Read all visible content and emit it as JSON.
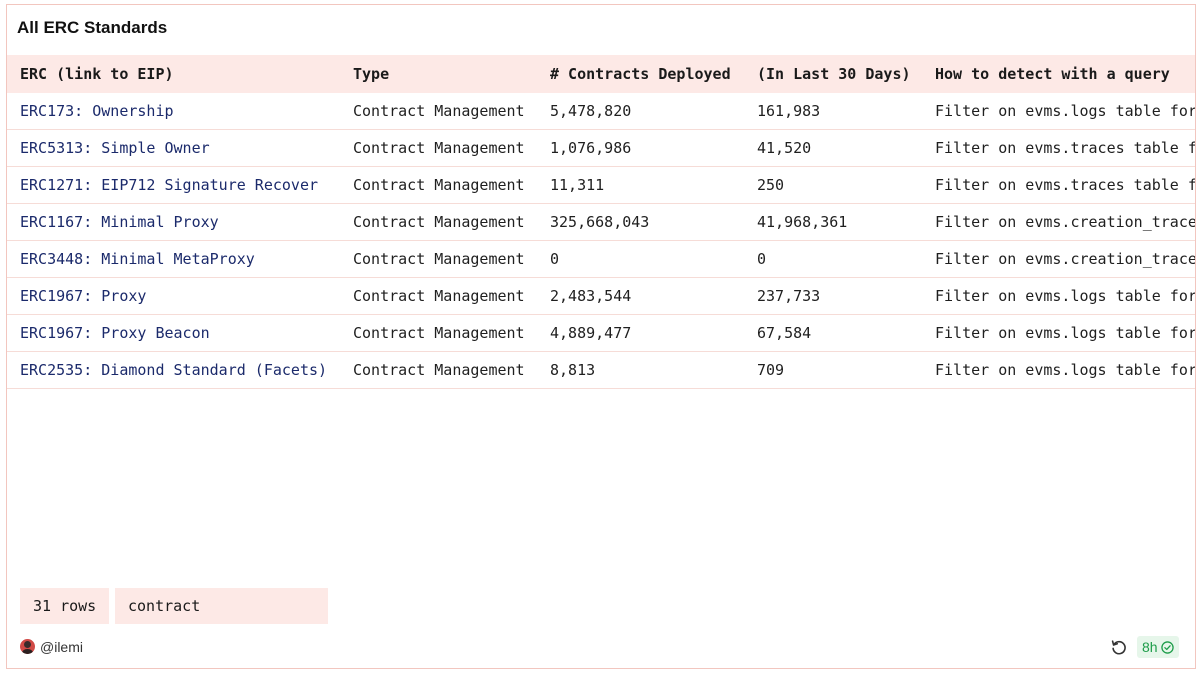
{
  "widget": {
    "title": "All ERC Standards"
  },
  "table": {
    "columns": [
      "ERC (link to EIP)",
      "Type",
      "# Contracts Deployed",
      "(In Last 30 Days)",
      "How to detect with a query"
    ],
    "rows": [
      {
        "erc": "ERC173: Ownership",
        "type": "Contract Management",
        "deployed": "5,478,820",
        "last30": "161,983",
        "detect": "Filter on evms.logs table for"
      },
      {
        "erc": "ERC5313: Simple Owner",
        "type": "Contract Management",
        "deployed": "1,076,986",
        "last30": "41,520",
        "detect": "Filter on evms.traces table fo"
      },
      {
        "erc": "ERC1271: EIP712 Signature Recover",
        "type": "Contract Management",
        "deployed": "11,311",
        "last30": "250",
        "detect": "Filter on evms.traces table fo"
      },
      {
        "erc": "ERC1167: Minimal Proxy",
        "type": "Contract Management",
        "deployed": "325,668,043",
        "last30": "41,968,361",
        "detect": "Filter on evms.creation_traces"
      },
      {
        "erc": "ERC3448: Minimal MetaProxy",
        "type": "Contract Management",
        "deployed": "0",
        "last30": "0",
        "detect": "Filter on evms.creation_traces"
      },
      {
        "erc": "ERC1967: Proxy",
        "type": "Contract Management",
        "deployed": "2,483,544",
        "last30": "237,733",
        "detect": "Filter on evms.logs table for"
      },
      {
        "erc": "ERC1967: Proxy Beacon",
        "type": "Contract Management",
        "deployed": "4,889,477",
        "last30": "67,584",
        "detect": "Filter on evms.logs table for"
      },
      {
        "erc": "ERC2535: Diamond Standard (Facets)",
        "type": "Contract Management",
        "deployed": "8,813",
        "last30": "709",
        "detect": "Filter on evms.logs table for"
      }
    ]
  },
  "footer": {
    "row_count": "31 rows",
    "search_value": "contract",
    "author": "@ilemi",
    "freshness": "8h"
  },
  "icons": {
    "refresh": "refresh-icon",
    "check": "check-circle-icon",
    "avatar": "avatar"
  },
  "colors": {
    "header_bg": "#fde9e6",
    "link": "#1b2a6b",
    "freshness": "#1e9d4a"
  }
}
